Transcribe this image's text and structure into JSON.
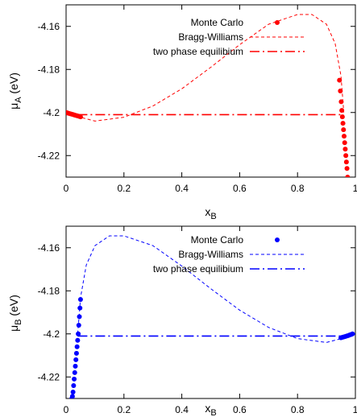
{
  "chart_data": [
    {
      "type": "line",
      "xlabel": "x",
      "xlabel_sub": "B",
      "ylabel": "μ",
      "ylabel_sub": "A",
      "ylabel_unit": " (eV)",
      "xlim": [
        0,
        1
      ],
      "ylim": [
        -4.23,
        -4.15
      ],
      "xticks": [
        0,
        0.2,
        0.4,
        0.6,
        0.8,
        1
      ],
      "xtick_labels": [
        "0",
        "0.2",
        "0.4",
        "0.6",
        "0.8",
        "1"
      ],
      "yticks": [
        -4.16,
        -4.18,
        -4.2,
        -4.22
      ],
      "ytick_labels": [
        "-4.16",
        "-4.18",
        "-4.2",
        "-4.22"
      ],
      "legend_position": "top-right",
      "series": [
        {
          "name": "Monte Carlo",
          "style": "points",
          "color": "#ff0000",
          "x": [
            0.0,
            0.005,
            0.01,
            0.015,
            0.02,
            0.025,
            0.03,
            0.035,
            0.04,
            0.045,
            0.05,
            0.945,
            0.948,
            0.951,
            0.953,
            0.955,
            0.957,
            0.959,
            0.961,
            0.963,
            0.965,
            0.967,
            0.969,
            0.971,
            0.973
          ],
          "y": [
            -4.2,
            -4.2002,
            -4.2004,
            -4.2006,
            -4.2008,
            -4.201,
            -4.2012,
            -4.2014,
            -4.2016,
            -4.2018,
            -4.202,
            -4.185,
            -4.19,
            -4.195,
            -4.199,
            -4.202,
            -4.205,
            -4.208,
            -4.211,
            -4.214,
            -4.217,
            -4.22,
            -4.223,
            -4.226,
            -4.23
          ]
        },
        {
          "name": "Bragg-Williams",
          "style": "dashed",
          "color": "#ff0000",
          "x": [
            0.0,
            0.03,
            0.1,
            0.2,
            0.3,
            0.4,
            0.5,
            0.6,
            0.7,
            0.8,
            0.85,
            0.9,
            0.93,
            0.95,
            0.96
          ],
          "y": [
            -4.2,
            -4.2015,
            -4.204,
            -4.2022,
            -4.197,
            -4.189,
            -4.179,
            -4.1685,
            -4.159,
            -4.1545,
            -4.1545,
            -4.159,
            -4.168,
            -4.183,
            -4.2
          ]
        },
        {
          "name": "two phase equilibium",
          "style": "dashdot",
          "color": "#ff0000",
          "x": [
            0.04,
            0.96
          ],
          "y": [
            -4.201,
            -4.201
          ]
        }
      ]
    },
    {
      "type": "line",
      "xlabel": "x",
      "xlabel_sub": "B",
      "ylabel": "μ",
      "ylabel_sub": "B",
      "ylabel_unit": " (eV)",
      "xlim": [
        0,
        1
      ],
      "ylim": [
        -4.23,
        -4.15
      ],
      "xticks": [
        0,
        0.2,
        0.4,
        0.6,
        0.8,
        1
      ],
      "xtick_labels": [
        "0",
        "0.2",
        "0.4",
        "0.6",
        "0.8",
        "1"
      ],
      "yticks": [
        -4.16,
        -4.18,
        -4.2,
        -4.22
      ],
      "ytick_labels": [
        "-4.16",
        "-4.18",
        "-4.2",
        "-4.22"
      ],
      "legend_position": "top-right",
      "series": [
        {
          "name": "Monte Carlo",
          "style": "points",
          "color": "#0000ff",
          "x": [
            0.05,
            0.048,
            0.046,
            0.044,
            0.042,
            0.04,
            0.038,
            0.036,
            0.034,
            0.032,
            0.03,
            0.028,
            0.026,
            0.024,
            0.022,
            0.02,
            0.95,
            0.955,
            0.96,
            0.965,
            0.97,
            0.975,
            0.98,
            0.985,
            0.99
          ],
          "y": [
            -4.184,
            -4.188,
            -4.192,
            -4.196,
            -4.2,
            -4.203,
            -4.206,
            -4.209,
            -4.212,
            -4.215,
            -4.218,
            -4.221,
            -4.224,
            -4.227,
            -4.229,
            -4.23,
            -4.2018,
            -4.2016,
            -4.2014,
            -4.2012,
            -4.201,
            -4.2008,
            -4.2005,
            -4.2003,
            -4.2
          ]
        },
        {
          "name": "Bragg-Williams",
          "style": "dashed",
          "color": "#0000ff",
          "x": [
            0.04,
            0.05,
            0.07,
            0.1,
            0.15,
            0.2,
            0.3,
            0.4,
            0.5,
            0.6,
            0.7,
            0.8,
            0.9,
            0.97,
            1.0
          ],
          "y": [
            -4.2,
            -4.183,
            -4.168,
            -4.159,
            -4.1545,
            -4.1545,
            -4.159,
            -4.1685,
            -4.179,
            -4.189,
            -4.197,
            -4.2022,
            -4.204,
            -4.2015,
            -4.2
          ]
        },
        {
          "name": "two phase equilibium",
          "style": "dashdot",
          "color": "#0000ff",
          "x": [
            0.04,
            0.96
          ],
          "y": [
            -4.201,
            -4.201
          ]
        }
      ]
    }
  ]
}
